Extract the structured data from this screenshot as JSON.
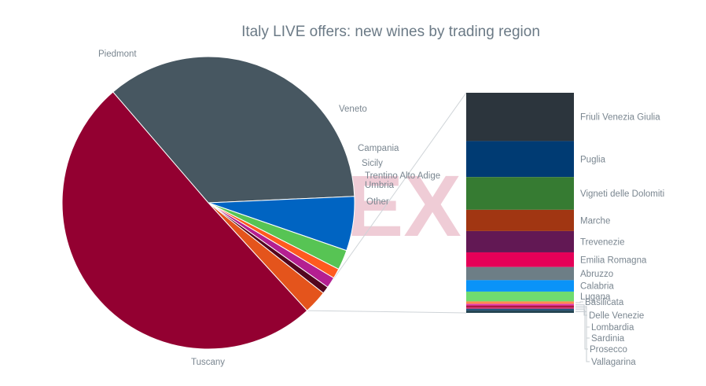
{
  "chart_data": {
    "type": "pie",
    "title": "Italy LIVE offers: new wines by trading region",
    "watermark": "EX",
    "series": [
      {
        "name": "Piedmont",
        "value": 35.6,
        "color": "#475761"
      },
      {
        "name": "Veneto",
        "value": 6.0,
        "color": "#0064c2"
      },
      {
        "name": "Campania",
        "value": 2.2,
        "color": "#57c454"
      },
      {
        "name": "Sicily",
        "value": 1.1,
        "color": "#ff5a1f"
      },
      {
        "name": "Trentino Alto Adige",
        "value": 1.2,
        "color": "#b41f91"
      },
      {
        "name": "Umbria",
        "value": 0.8,
        "color": "#52061e"
      },
      {
        "name": "Other",
        "value": 2.6,
        "color": "#e4541c"
      },
      {
        "name": "Tuscany",
        "value": 50.5,
        "color": "#930031"
      }
    ],
    "other_breakdown": {
      "parent": "Other",
      "items": [
        {
          "name": "Friuli Venezia Giulia",
          "value": 59,
          "color": "#2c353d"
        },
        {
          "name": "Puglia",
          "value": 44,
          "color": "#003b73"
        },
        {
          "name": "Vigneti delle Dolomiti",
          "value": 40,
          "color": "#367b32"
        },
        {
          "name": "Marche",
          "value": 26,
          "color": "#a13612"
        },
        {
          "name": "Trevenezie",
          "value": 26,
          "color": "#621854"
        },
        {
          "name": "Emilia Romagna",
          "value": 18,
          "color": "#e50058"
        },
        {
          "name": "Abruzzo",
          "value": 16,
          "color": "#6d7e86"
        },
        {
          "name": "Calabria",
          "value": 14,
          "color": "#0a93f8"
        },
        {
          "name": "Lugana",
          "value": 12,
          "color": "#70dc6f"
        },
        {
          "name": "Basilicata",
          "value": 3,
          "color": "#ff8a50"
        },
        {
          "name": "Delle Venezie",
          "value": 2,
          "color": "#e33db3"
        },
        {
          "name": "Lombardia",
          "value": 2,
          "color": "#a8062f"
        },
        {
          "name": "Sardinia",
          "value": 2,
          "color": "#d12b6a"
        },
        {
          "name": "Prosecco",
          "value": 2,
          "color": "#1f4f7a"
        },
        {
          "name": "Vallagarina",
          "value": 3,
          "color": "#264653"
        }
      ]
    }
  }
}
